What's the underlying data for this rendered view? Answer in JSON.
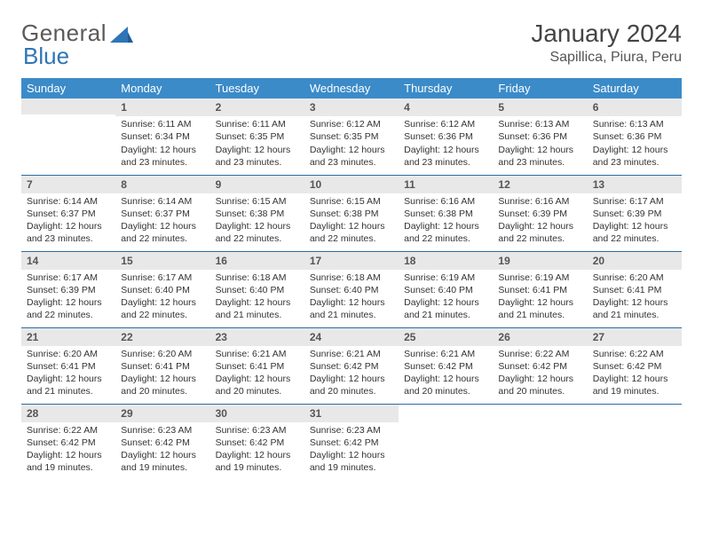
{
  "logo": {
    "part1": "General",
    "part2": "Blue"
  },
  "title": "January 2024",
  "location": "Sapillica, Piura, Peru",
  "colors": {
    "header_bg": "#3b8bc9",
    "header_text": "#ffffff",
    "daynum_bg": "#e8e8e8",
    "border": "#2e6da4",
    "logo_gray": "#5a5a5a",
    "logo_blue": "#2e75b6"
  },
  "weekdays": [
    "Sunday",
    "Monday",
    "Tuesday",
    "Wednesday",
    "Thursday",
    "Friday",
    "Saturday"
  ],
  "first_weekday_index": 1,
  "days": [
    {
      "n": 1,
      "sunrise": "6:11 AM",
      "sunset": "6:34 PM",
      "daylight": "12 hours and 23 minutes."
    },
    {
      "n": 2,
      "sunrise": "6:11 AM",
      "sunset": "6:35 PM",
      "daylight": "12 hours and 23 minutes."
    },
    {
      "n": 3,
      "sunrise": "6:12 AM",
      "sunset": "6:35 PM",
      "daylight": "12 hours and 23 minutes."
    },
    {
      "n": 4,
      "sunrise": "6:12 AM",
      "sunset": "6:36 PM",
      "daylight": "12 hours and 23 minutes."
    },
    {
      "n": 5,
      "sunrise": "6:13 AM",
      "sunset": "6:36 PM",
      "daylight": "12 hours and 23 minutes."
    },
    {
      "n": 6,
      "sunrise": "6:13 AM",
      "sunset": "6:36 PM",
      "daylight": "12 hours and 23 minutes."
    },
    {
      "n": 7,
      "sunrise": "6:14 AM",
      "sunset": "6:37 PM",
      "daylight": "12 hours and 23 minutes."
    },
    {
      "n": 8,
      "sunrise": "6:14 AM",
      "sunset": "6:37 PM",
      "daylight": "12 hours and 22 minutes."
    },
    {
      "n": 9,
      "sunrise": "6:15 AM",
      "sunset": "6:38 PM",
      "daylight": "12 hours and 22 minutes."
    },
    {
      "n": 10,
      "sunrise": "6:15 AM",
      "sunset": "6:38 PM",
      "daylight": "12 hours and 22 minutes."
    },
    {
      "n": 11,
      "sunrise": "6:16 AM",
      "sunset": "6:38 PM",
      "daylight": "12 hours and 22 minutes."
    },
    {
      "n": 12,
      "sunrise": "6:16 AM",
      "sunset": "6:39 PM",
      "daylight": "12 hours and 22 minutes."
    },
    {
      "n": 13,
      "sunrise": "6:17 AM",
      "sunset": "6:39 PM",
      "daylight": "12 hours and 22 minutes."
    },
    {
      "n": 14,
      "sunrise": "6:17 AM",
      "sunset": "6:39 PM",
      "daylight": "12 hours and 22 minutes."
    },
    {
      "n": 15,
      "sunrise": "6:17 AM",
      "sunset": "6:40 PM",
      "daylight": "12 hours and 22 minutes."
    },
    {
      "n": 16,
      "sunrise": "6:18 AM",
      "sunset": "6:40 PM",
      "daylight": "12 hours and 21 minutes."
    },
    {
      "n": 17,
      "sunrise": "6:18 AM",
      "sunset": "6:40 PM",
      "daylight": "12 hours and 21 minutes."
    },
    {
      "n": 18,
      "sunrise": "6:19 AM",
      "sunset": "6:40 PM",
      "daylight": "12 hours and 21 minutes."
    },
    {
      "n": 19,
      "sunrise": "6:19 AM",
      "sunset": "6:41 PM",
      "daylight": "12 hours and 21 minutes."
    },
    {
      "n": 20,
      "sunrise": "6:20 AM",
      "sunset": "6:41 PM",
      "daylight": "12 hours and 21 minutes."
    },
    {
      "n": 21,
      "sunrise": "6:20 AM",
      "sunset": "6:41 PM",
      "daylight": "12 hours and 21 minutes."
    },
    {
      "n": 22,
      "sunrise": "6:20 AM",
      "sunset": "6:41 PM",
      "daylight": "12 hours and 20 minutes."
    },
    {
      "n": 23,
      "sunrise": "6:21 AM",
      "sunset": "6:41 PM",
      "daylight": "12 hours and 20 minutes."
    },
    {
      "n": 24,
      "sunrise": "6:21 AM",
      "sunset": "6:42 PM",
      "daylight": "12 hours and 20 minutes."
    },
    {
      "n": 25,
      "sunrise": "6:21 AM",
      "sunset": "6:42 PM",
      "daylight": "12 hours and 20 minutes."
    },
    {
      "n": 26,
      "sunrise": "6:22 AM",
      "sunset": "6:42 PM",
      "daylight": "12 hours and 20 minutes."
    },
    {
      "n": 27,
      "sunrise": "6:22 AM",
      "sunset": "6:42 PM",
      "daylight": "12 hours and 19 minutes."
    },
    {
      "n": 28,
      "sunrise": "6:22 AM",
      "sunset": "6:42 PM",
      "daylight": "12 hours and 19 minutes."
    },
    {
      "n": 29,
      "sunrise": "6:23 AM",
      "sunset": "6:42 PM",
      "daylight": "12 hours and 19 minutes."
    },
    {
      "n": 30,
      "sunrise": "6:23 AM",
      "sunset": "6:42 PM",
      "daylight": "12 hours and 19 minutes."
    },
    {
      "n": 31,
      "sunrise": "6:23 AM",
      "sunset": "6:42 PM",
      "daylight": "12 hours and 19 minutes."
    }
  ],
  "labels": {
    "sunrise": "Sunrise:",
    "sunset": "Sunset:",
    "daylight": "Daylight:"
  }
}
